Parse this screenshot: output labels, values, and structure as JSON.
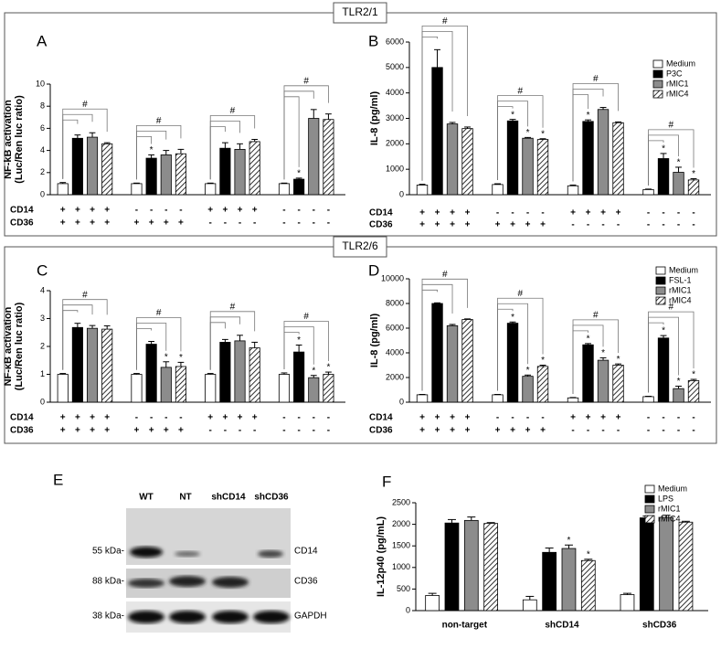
{
  "sections": [
    "TLR2/1",
    "TLR2/6"
  ],
  "chart_data": [
    {
      "type": "bar",
      "panel": "A",
      "ylabel": [
        "NF-kB activation",
        "(Luc/Ren luc ratio)"
      ],
      "ylim": [
        0,
        10
      ],
      "yticks": [
        0,
        2,
        4,
        6,
        8,
        10
      ],
      "group_marks": [
        "#",
        "#",
        "#",
        "#"
      ],
      "rows": [
        {
          "label": "CD14",
          "signs": [
            "+",
            "+",
            "+",
            "+",
            "-",
            "-",
            "-",
            "-",
            "+",
            "+",
            "+",
            "+",
            "-",
            "-",
            "-",
            "-"
          ]
        },
        {
          "label": "CD36",
          "signs": [
            "+",
            "+",
            "+",
            "+",
            "+",
            "+",
            "+",
            "+",
            "-",
            "-",
            "-",
            "-",
            "-",
            "-",
            "-",
            "-"
          ]
        }
      ],
      "series": [
        {
          "color": "#ffffff",
          "values": [
            1.0,
            1.0,
            1.0,
            1.0
          ],
          "errors": [
            0.1,
            0.05,
            0.05,
            0.05
          ],
          "marks": [
            null,
            null,
            null,
            null
          ]
        },
        {
          "color": "#000000",
          "values": [
            5.1,
            3.3,
            4.2,
            1.4
          ],
          "errors": [
            0.3,
            0.3,
            0.5,
            0.1
          ],
          "marks": [
            null,
            "*",
            null,
            "*"
          ]
        },
        {
          "color": "#8c8c8c",
          "values": [
            5.2,
            3.6,
            4.1,
            6.9
          ],
          "errors": [
            0.4,
            0.4,
            0.5,
            0.8
          ],
          "marks": [
            null,
            null,
            null,
            null
          ]
        },
        {
          "color": "#ffffff",
          "hatch": true,
          "values": [
            4.6,
            3.7,
            4.8,
            6.8
          ],
          "errors": [
            0.1,
            0.4,
            0.2,
            0.5
          ],
          "marks": [
            null,
            null,
            null,
            null
          ]
        }
      ]
    },
    {
      "type": "bar",
      "panel": "B",
      "ylabel": "IL-8 (pg/ml)",
      "ylim": [
        0,
        6000
      ],
      "yticks": [
        0,
        1000,
        2000,
        3000,
        4000,
        5000,
        6000
      ],
      "group_marks": [
        "#",
        "#",
        "#",
        "#"
      ],
      "rows": [
        {
          "label": "CD14",
          "signs": [
            "+",
            "+",
            "+",
            "+",
            "-",
            "-",
            "-",
            "-",
            "+",
            "+",
            "+",
            "+",
            "-",
            "-",
            "-",
            "-"
          ]
        },
        {
          "label": "CD36",
          "signs": [
            "+",
            "+",
            "+",
            "+",
            "+",
            "+",
            "+",
            "+",
            "-",
            "-",
            "-",
            "-",
            "-",
            "-",
            "-",
            "-"
          ]
        }
      ],
      "series": [
        {
          "name": "Medium",
          "color": "#ffffff",
          "values": [
            380,
            400,
            350,
            200
          ],
          "errors": [
            30,
            30,
            30,
            20
          ],
          "marks": [
            null,
            null,
            null,
            null
          ]
        },
        {
          "name": "P3C",
          "color": "#000000",
          "values": [
            5000,
            2900,
            2880,
            1420
          ],
          "errors": [
            700,
            60,
            60,
            200
          ],
          "marks": [
            null,
            "*",
            "*",
            "*"
          ]
        },
        {
          "name": "rMIC1",
          "color": "#8c8c8c",
          "values": [
            2780,
            2220,
            3350,
            880
          ],
          "errors": [
            60,
            30,
            80,
            200
          ],
          "marks": [
            null,
            "*",
            null,
            "*"
          ]
        },
        {
          "name": "rMIC4",
          "color": "#ffffff",
          "hatch": true,
          "values": [
            2600,
            2170,
            2830,
            580
          ],
          "errors": [
            60,
            30,
            30,
            50
          ],
          "marks": [
            null,
            "*",
            null,
            "*"
          ]
        }
      ]
    },
    {
      "type": "bar",
      "panel": "C",
      "ylabel": [
        "NF-κB activation",
        "(Luc/Ren luc ratio)"
      ],
      "ylim": [
        0,
        4
      ],
      "yticks": [
        0,
        1,
        2,
        3,
        4
      ],
      "group_marks": [
        "#",
        "#",
        "#",
        "#"
      ],
      "rows": [
        {
          "label": "CD14",
          "signs": [
            "+",
            "+",
            "+",
            "+",
            "-",
            "-",
            "-",
            "-",
            "+",
            "+",
            "+",
            "+",
            "-",
            "-",
            "-",
            "-"
          ]
        },
        {
          "label": "CD36",
          "signs": [
            "+",
            "+",
            "+",
            "+",
            "+",
            "+",
            "+",
            "+",
            "-",
            "-",
            "-",
            "-",
            "-",
            "-",
            "-",
            "-"
          ]
        }
      ],
      "series": [
        {
          "color": "#ffffff",
          "values": [
            1.0,
            1.0,
            1.0,
            1.0
          ],
          "errors": [
            0.03,
            0.03,
            0.03,
            0.05
          ],
          "marks": [
            null,
            null,
            null,
            null
          ]
        },
        {
          "color": "#000000",
          "values": [
            2.68,
            2.08,
            2.15,
            1.8
          ],
          "errors": [
            0.15,
            0.1,
            0.1,
            0.25
          ],
          "marks": [
            null,
            null,
            null,
            "*"
          ]
        },
        {
          "color": "#8c8c8c",
          "values": [
            2.65,
            1.25,
            2.2,
            0.88
          ],
          "errors": [
            0.1,
            0.2,
            0.2,
            0.08
          ],
          "marks": [
            null,
            "*",
            null,
            "*"
          ]
        },
        {
          "color": "#ffffff",
          "hatch": true,
          "values": [
            2.62,
            1.28,
            1.95,
            1.0
          ],
          "errors": [
            0.12,
            0.15,
            0.2,
            0.08
          ],
          "marks": [
            null,
            "*",
            null,
            "*"
          ]
        }
      ]
    },
    {
      "type": "bar",
      "panel": "D",
      "ylabel": "IL-8 (pg/ml)",
      "ylim": [
        0,
        10000
      ],
      "yticks": [
        0,
        2000,
        4000,
        6000,
        8000,
        10000
      ],
      "group_marks": [
        "#",
        "#",
        "#",
        "#"
      ],
      "rows": [
        {
          "label": "CD14",
          "signs": [
            "+",
            "+",
            "+",
            "+",
            "-",
            "-",
            "-",
            "-",
            "+",
            "+",
            "+",
            "+",
            "-",
            "-",
            "-",
            "-"
          ]
        },
        {
          "label": "CD36",
          "signs": [
            "+",
            "+",
            "+",
            "+",
            "+",
            "+",
            "+",
            "+",
            "-",
            "-",
            "-",
            "-",
            "-",
            "-",
            "-",
            "-"
          ]
        }
      ],
      "series": [
        {
          "name": "Medium",
          "color": "#ffffff",
          "values": [
            600,
            600,
            350,
            450
          ],
          "errors": [
            30,
            30,
            30,
            30
          ],
          "marks": [
            null,
            null,
            null,
            null
          ]
        },
        {
          "name": "FSL-1",
          "color": "#000000",
          "values": [
            8000,
            6400,
            4650,
            5200
          ],
          "errors": [
            50,
            100,
            100,
            200
          ],
          "marks": [
            null,
            "*",
            "*",
            "*"
          ]
        },
        {
          "name": "rMIC1",
          "color": "#8c8c8c",
          "values": [
            6200,
            2100,
            3400,
            1100
          ],
          "errors": [
            100,
            100,
            200,
            200
          ],
          "marks": [
            null,
            "*",
            "*",
            "*"
          ]
        },
        {
          "name": "rMIC4",
          "color": "#ffffff",
          "hatch": true,
          "values": [
            6700,
            2900,
            3000,
            1750
          ],
          "errors": [
            50,
            100,
            100,
            100
          ],
          "marks": [
            null,
            "*",
            "*",
            "*"
          ]
        }
      ]
    },
    {
      "type": "bar",
      "panel": "F",
      "ylabel": "IL-12p40 (pg/mL)",
      "ylim": [
        0,
        2500
      ],
      "yticks": [
        0,
        500,
        1000,
        1500,
        2000,
        2500
      ],
      "categories": [
        "non-target",
        "shCD14",
        "shCD36"
      ],
      "series": [
        {
          "name": "Medium",
          "color": "#ffffff",
          "values": [
            350,
            250,
            370
          ],
          "errors": [
            50,
            80,
            30
          ],
          "marks": [
            null,
            null,
            null
          ]
        },
        {
          "name": "LPS",
          "color": "#000000",
          "values": [
            2030,
            1350,
            2150
          ],
          "errors": [
            80,
            100,
            40
          ],
          "marks": [
            null,
            null,
            null
          ]
        },
        {
          "name": "rMIC1",
          "color": "#8c8c8c",
          "values": [
            2090,
            1440,
            2160
          ],
          "errors": [
            80,
            80,
            50
          ],
          "marks": [
            null,
            "*",
            null
          ]
        },
        {
          "name": "rMIC4",
          "color": "#ffffff",
          "hatch": true,
          "values": [
            2020,
            1160,
            2050
          ],
          "errors": [
            20,
            30,
            20
          ],
          "marks": [
            null,
            "*",
            null
          ]
        }
      ]
    }
  ],
  "blot": {
    "panel": "E",
    "lanes": [
      "WT",
      "NT",
      "shCD14",
      "shCD36"
    ],
    "rows": [
      {
        "marker": "55 kDa-",
        "label": "CD14"
      },
      {
        "marker": "88 kDa-",
        "label": "CD36"
      },
      {
        "marker": "38 kDa-",
        "label": "GAPDH"
      }
    ]
  }
}
